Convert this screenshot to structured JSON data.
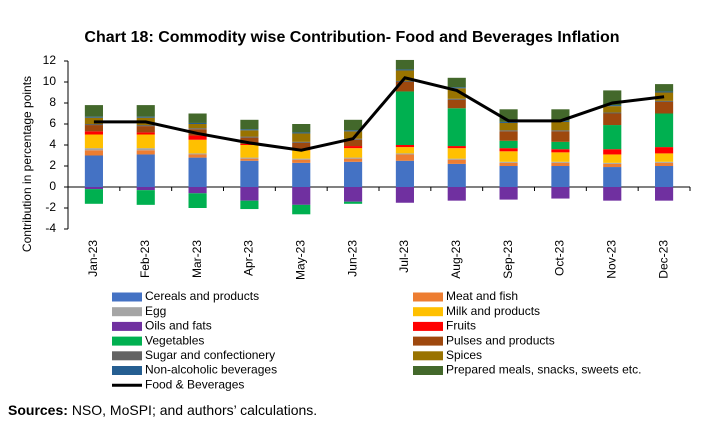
{
  "chart_data": {
    "type": "bar",
    "title": "Chart 18: Commodity wise Contribution- Food and Beverages Inflation",
    "y_label": "Contribution in percentage points",
    "categories": [
      "Jan-23",
      "Feb-23",
      "Mar-23",
      "Apr-23",
      "May-23",
      "Jun-23",
      "Jul-23",
      "Aug-23",
      "Sep-23",
      "Oct-23",
      "Nov-23",
      "Dec-23"
    ],
    "ylim": [
      -4,
      12
    ],
    "yticks": [
      -4,
      -2,
      0,
      2,
      4,
      6,
      8,
      10,
      12
    ],
    "stacked": true,
    "series": [
      {
        "name": "Cereals and products",
        "color": "#4472c4",
        "values": [
          3.0,
          3.1,
          2.8,
          2.5,
          2.3,
          2.4,
          2.5,
          2.2,
          2.0,
          2.0,
          1.9,
          2.0
        ]
      },
      {
        "name": "Meat and fish",
        "color": "#ed7d31",
        "values": [
          0.5,
          0.4,
          0.3,
          0.2,
          0.3,
          0.3,
          0.6,
          0.4,
          0.3,
          0.3,
          0.3,
          0.3
        ]
      },
      {
        "name": "Egg",
        "color": "#a5a5a5",
        "values": [
          0.2,
          0.2,
          0.1,
          0.1,
          0.1,
          0.1,
          0.1,
          0.1,
          0.1,
          0.1,
          0.1,
          0.1
        ]
      },
      {
        "name": "Milk and products",
        "color": "#ffc000",
        "values": [
          1.3,
          1.3,
          1.3,
          1.2,
          0.8,
          0.9,
          0.6,
          1.0,
          1.0,
          0.9,
          0.8,
          0.8
        ]
      },
      {
        "name": "Oils and fats",
        "color": "#7030a0",
        "values": [
          -0.2,
          -0.3,
          -0.6,
          -1.3,
          -1.7,
          -1.4,
          -1.5,
          -1.3,
          -1.2,
          -1.1,
          -1.3,
          -1.3
        ]
      },
      {
        "name": "Fruits",
        "color": "#ff0000",
        "values": [
          0.3,
          0.2,
          0.4,
          0.1,
          0.1,
          0.2,
          0.2,
          0.2,
          0.3,
          0.3,
          0.5,
          0.6
        ]
      },
      {
        "name": "Vegetables",
        "color": "#00b050",
        "values": [
          -1.4,
          -1.4,
          -1.4,
          -0.8,
          -0.9,
          -0.2,
          5.1,
          3.6,
          0.7,
          0.7,
          2.3,
          3.2
        ]
      },
      {
        "name": "Pulses and products",
        "color": "#9e480e",
        "values": [
          0.6,
          0.6,
          0.6,
          0.6,
          0.6,
          0.6,
          0.9,
          0.8,
          0.9,
          1.0,
          1.1,
          1.1
        ]
      },
      {
        "name": "Sugar and confectionery",
        "color": "#636363",
        "values": [
          0.1,
          0.1,
          0.1,
          0.1,
          0.1,
          0.1,
          0.1,
          0.1,
          0.1,
          0.1,
          0.1,
          0.1
        ]
      },
      {
        "name": "Spices",
        "color": "#997300",
        "values": [
          0.6,
          0.7,
          0.4,
          0.6,
          0.8,
          0.7,
          1.0,
          1.0,
          0.7,
          0.8,
          0.6,
          0.8
        ]
      },
      {
        "name": "Non-alcoholic beverages",
        "color": "#255e91",
        "values": [
          0.1,
          0.1,
          0.1,
          0.1,
          0.1,
          0.1,
          0.1,
          0.1,
          0.1,
          0.1,
          0.1,
          0.1
        ]
      },
      {
        "name": "Prepared meals, snacks, sweets etc.",
        "color": "#43682b",
        "values": [
          1.1,
          1.1,
          0.9,
          0.9,
          0.8,
          1.0,
          0.9,
          0.9,
          1.2,
          1.1,
          1.4,
          0.7
        ]
      },
      {
        "name": "Food & Beverages",
        "type": "line",
        "color": "#000000",
        "values": [
          6.2,
          6.2,
          5.1,
          4.2,
          3.5,
          4.6,
          10.4,
          9.2,
          6.3,
          6.3,
          8.0,
          8.6
        ]
      }
    ]
  },
  "source_label": "Sources:",
  "source_text": "NSO, MoSPI; and authors’ calculations."
}
